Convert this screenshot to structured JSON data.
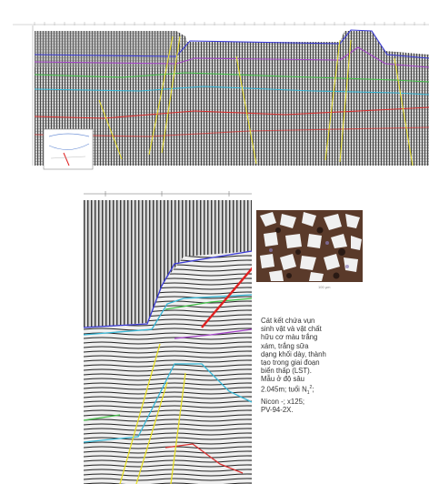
{
  "panels": {
    "top_profile": {
      "name": "seismic-profile-overview"
    },
    "detail": {
      "name": "seismic-detail-section"
    },
    "inset": {
      "name": "location-map-inset"
    },
    "microphotograph": {
      "name": "thin-section-microphotograph",
      "scale_label": "100 µm"
    }
  },
  "caption": {
    "lines": [
      "Cát kết chứa vụn",
      "sinh vật và vật chất",
      "hữu cơ màu trắng",
      "xám, trắng sữa",
      "dạng khối dày, thành",
      "tạo trong giai đoạn",
      "biển thấp (LST).",
      "Mẫu ở độ sâu",
      "2.045m; tuổi N",
      "Nicon -; x125;",
      "PV-94-2X."
    ],
    "age_superscript": "2",
    "age_subscript": "1",
    "age_suffix": ";"
  },
  "colors": {
    "horizon_blue": "#3b3bd6",
    "horizon_cyan": "#36b7d6",
    "horizon_green": "#45c24a",
    "horizon_purple": "#a545c9",
    "horizon_red": "#d93030",
    "fault_yellow": "#e8e02a",
    "arrow_red": "#e02020"
  }
}
